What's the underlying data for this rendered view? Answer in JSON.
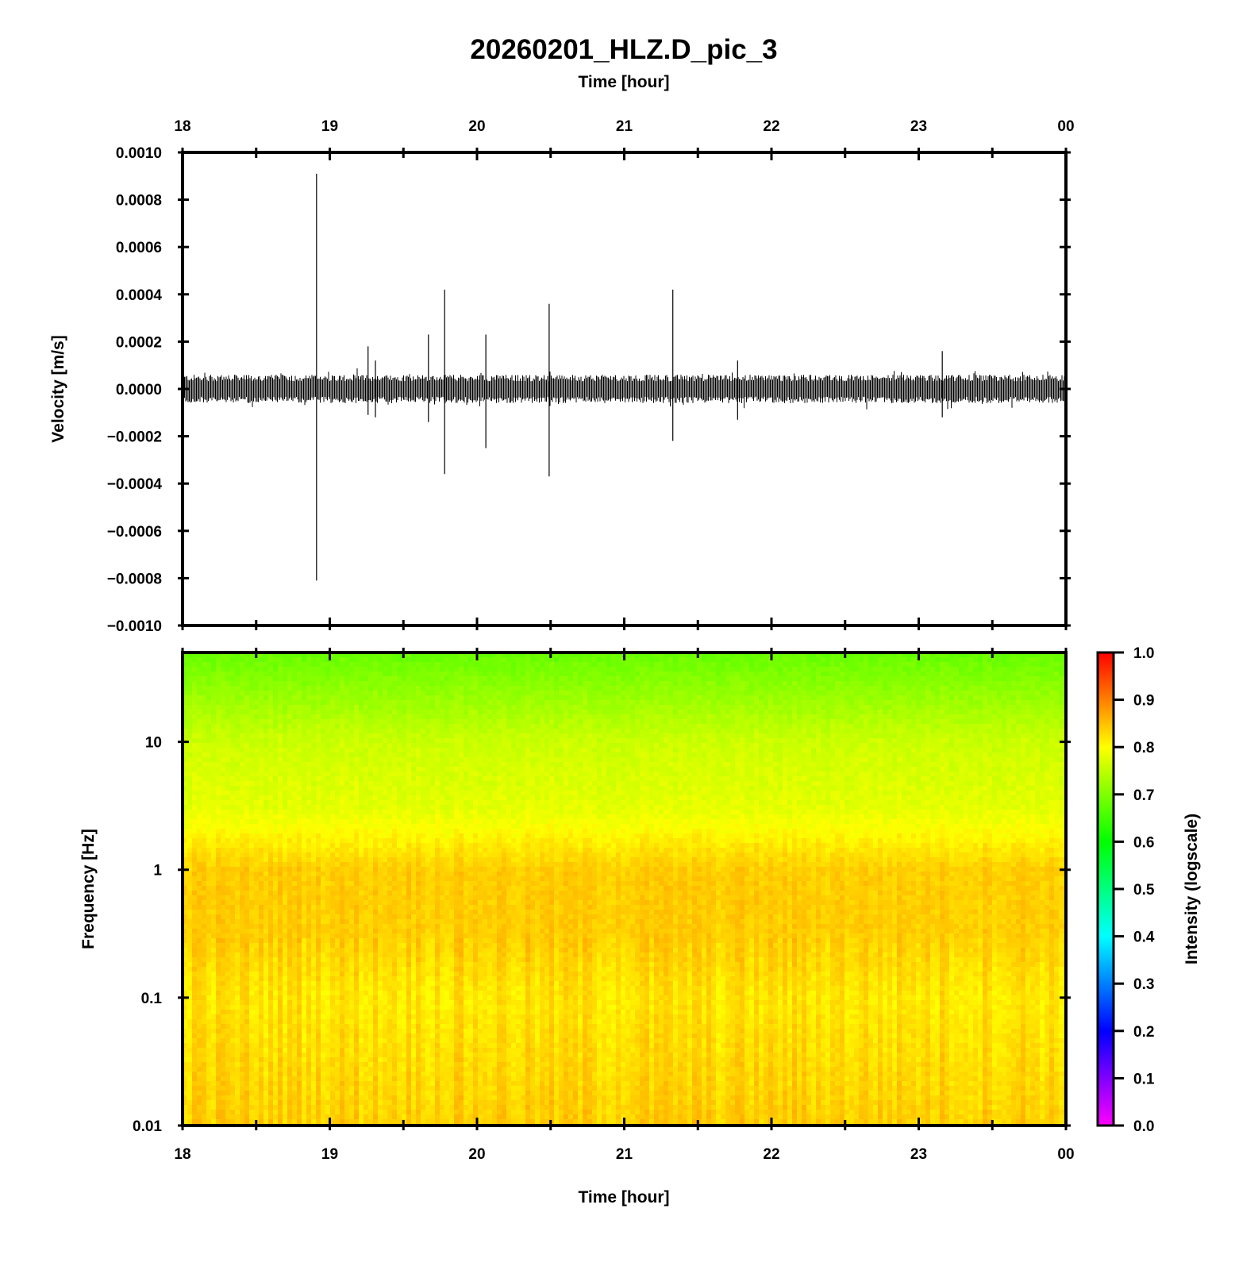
{
  "title": "20260201_HLZ.D_pic_3",
  "colors": {
    "trace": "#000000",
    "frame": "#000000",
    "background": "#ffffff"
  },
  "chart_data": [
    {
      "type": "line",
      "panel": "waveform",
      "xlabel": "Time [hour]",
      "ylabel": "Velocity [m/s]",
      "x_ticks": [
        "18",
        "19",
        "20",
        "21",
        "22",
        "23",
        "00"
      ],
      "x_tick_values": [
        18,
        19,
        20,
        21,
        22,
        23,
        24
      ],
      "xlim": [
        18,
        24
      ],
      "y_ticks": [
        "0.0010",
        "0.0008",
        "0.0006",
        "0.0004",
        "0.0002",
        "0.0000",
        "−0.0002",
        "−0.0004",
        "−0.0006",
        "−0.0008",
        "−0.0010"
      ],
      "y_tick_values": [
        0.001,
        0.0008,
        0.0006,
        0.0004,
        0.0002,
        0,
        -0.0002,
        -0.0004,
        -0.0006,
        -0.0008,
        -0.001
      ],
      "ylim": [
        -0.001,
        0.001
      ],
      "noise_amplitude": 6e-05,
      "spikes": [
        {
          "x": 18.91,
          "ymax": 0.00091,
          "ymin": -0.00081
        },
        {
          "x": 19.26,
          "ymax": 0.00018,
          "ymin": -0.00011
        },
        {
          "x": 19.31,
          "ymax": 0.00012,
          "ymin": -0.00012
        },
        {
          "x": 19.67,
          "ymax": 0.00023,
          "ymin": -0.00014
        },
        {
          "x": 19.78,
          "ymax": 0.00042,
          "ymin": -0.00036
        },
        {
          "x": 20.06,
          "ymax": 0.00023,
          "ymin": -0.00025
        },
        {
          "x": 20.49,
          "ymax": 0.00036,
          "ymin": -0.00037
        },
        {
          "x": 21.33,
          "ymax": 0.00042,
          "ymin": -0.00022
        },
        {
          "x": 21.77,
          "ymax": 0.00012,
          "ymin": -0.00013
        },
        {
          "x": 23.16,
          "ymax": 0.00016,
          "ymin": -0.00012
        }
      ]
    },
    {
      "type": "heatmap",
      "panel": "spectrogram",
      "xlabel": "Time [hour]",
      "ylabel": "Frequency [Hz]",
      "x_ticks": [
        "18",
        "19",
        "20",
        "21",
        "22",
        "23",
        "00"
      ],
      "x_tick_values": [
        18,
        19,
        20,
        21,
        22,
        23,
        24
      ],
      "xlim": [
        18,
        24
      ],
      "y_scale": "log",
      "y_ticks": [
        "10",
        "1",
        "0.1",
        "0.01"
      ],
      "y_tick_values": [
        10,
        1,
        0.1,
        0.01
      ],
      "ylim": [
        0.01,
        50
      ],
      "intensity_profile": {
        "frequency": [
          0.01,
          0.1,
          0.3,
          1,
          3,
          10,
          50
        ],
        "intensity": [
          0.84,
          0.82,
          0.84,
          0.84,
          0.78,
          0.76,
          0.68
        ]
      },
      "colorbar": {
        "label": "Intensity (logscale)",
        "ticks": [
          "1.0",
          "0.9",
          "0.8",
          "0.7",
          "0.6",
          "0.5",
          "0.4",
          "0.3",
          "0.2",
          "0.1",
          "0.0"
        ],
        "tick_values": [
          1.0,
          0.9,
          0.8,
          0.7,
          0.6,
          0.5,
          0.4,
          0.3,
          0.2,
          0.1,
          0.0
        ],
        "range": [
          0,
          1
        ],
        "colormap": "rainbow magenta-blue-cyan-green-yellow-red"
      }
    }
  ]
}
